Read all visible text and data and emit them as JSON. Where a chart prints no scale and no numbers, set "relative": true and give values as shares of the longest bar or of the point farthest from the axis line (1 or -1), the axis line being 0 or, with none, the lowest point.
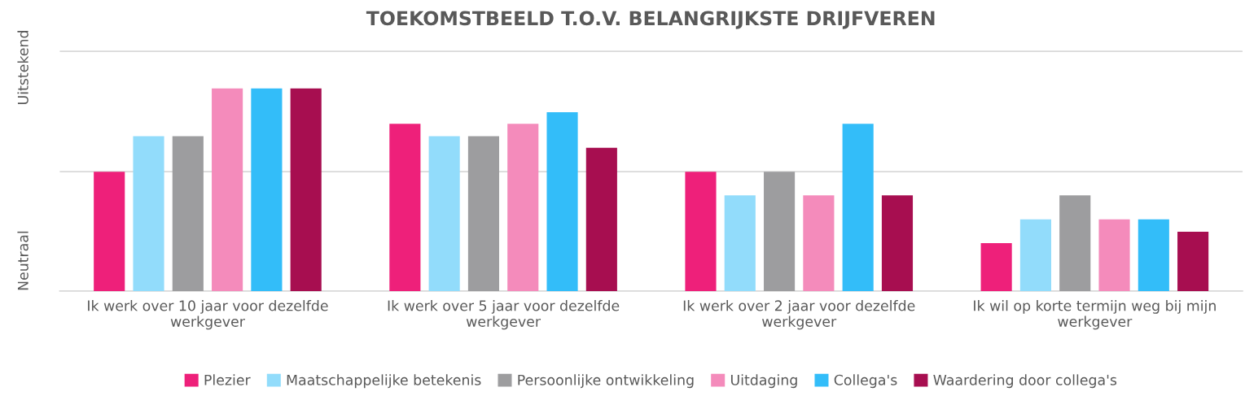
{
  "chart_data": {
    "type": "bar",
    "title": "TOEKOMSTBEELD T.O.V. BELANGRIJKSTE DRIJFVEREN",
    "relative": true,
    "categories": [
      "Ik werk over 10 jaar voor dezelfde\nwerkgever",
      "Ik werk over 5 jaar voor dezelfde\nwerkgever",
      "Ik werk over 2 jaar voor dezelfde\nwerkgever",
      "Ik wil op korte termijn weg bij mijn\nwerkgever"
    ],
    "series": [
      {
        "name": "Plezier",
        "color": "#ee207a",
        "values": [
          0.589,
          0.825,
          0.589,
          0.236
        ]
      },
      {
        "name": "Maatschappelijke betekenis",
        "color": "#92dcfb",
        "values": [
          0.764,
          0.764,
          0.472,
          0.354
        ]
      },
      {
        "name": "Persoonlijke ontwikkeling",
        "color": "#9d9d9f",
        "values": [
          0.764,
          0.764,
          0.589,
          0.472
        ]
      },
      {
        "name": "Uitdaging",
        "color": "#f48bbb",
        "values": [
          1,
          0.825,
          0.472,
          0.354
        ]
      },
      {
        "name": "Collega's",
        "color": "#33bdf9",
        "values": [
          1,
          0.882,
          0.825,
          0.354
        ]
      },
      {
        "name": "Waardering door collega's",
        "color": "#a70e50",
        "values": [
          1,
          0.707,
          0.472,
          0.293
        ]
      }
    ],
    "ref_lines": [
      {
        "axis": "y",
        "value": 0.589,
        "color": "#d9d9d9"
      },
      {
        "axis": "y",
        "value": 1.183,
        "color": "#d9d9d9"
      }
    ],
    "annotations": [
      "Neutraal",
      "Uitstekend"
    ],
    "legend": "bottom",
    "grid": false
  }
}
